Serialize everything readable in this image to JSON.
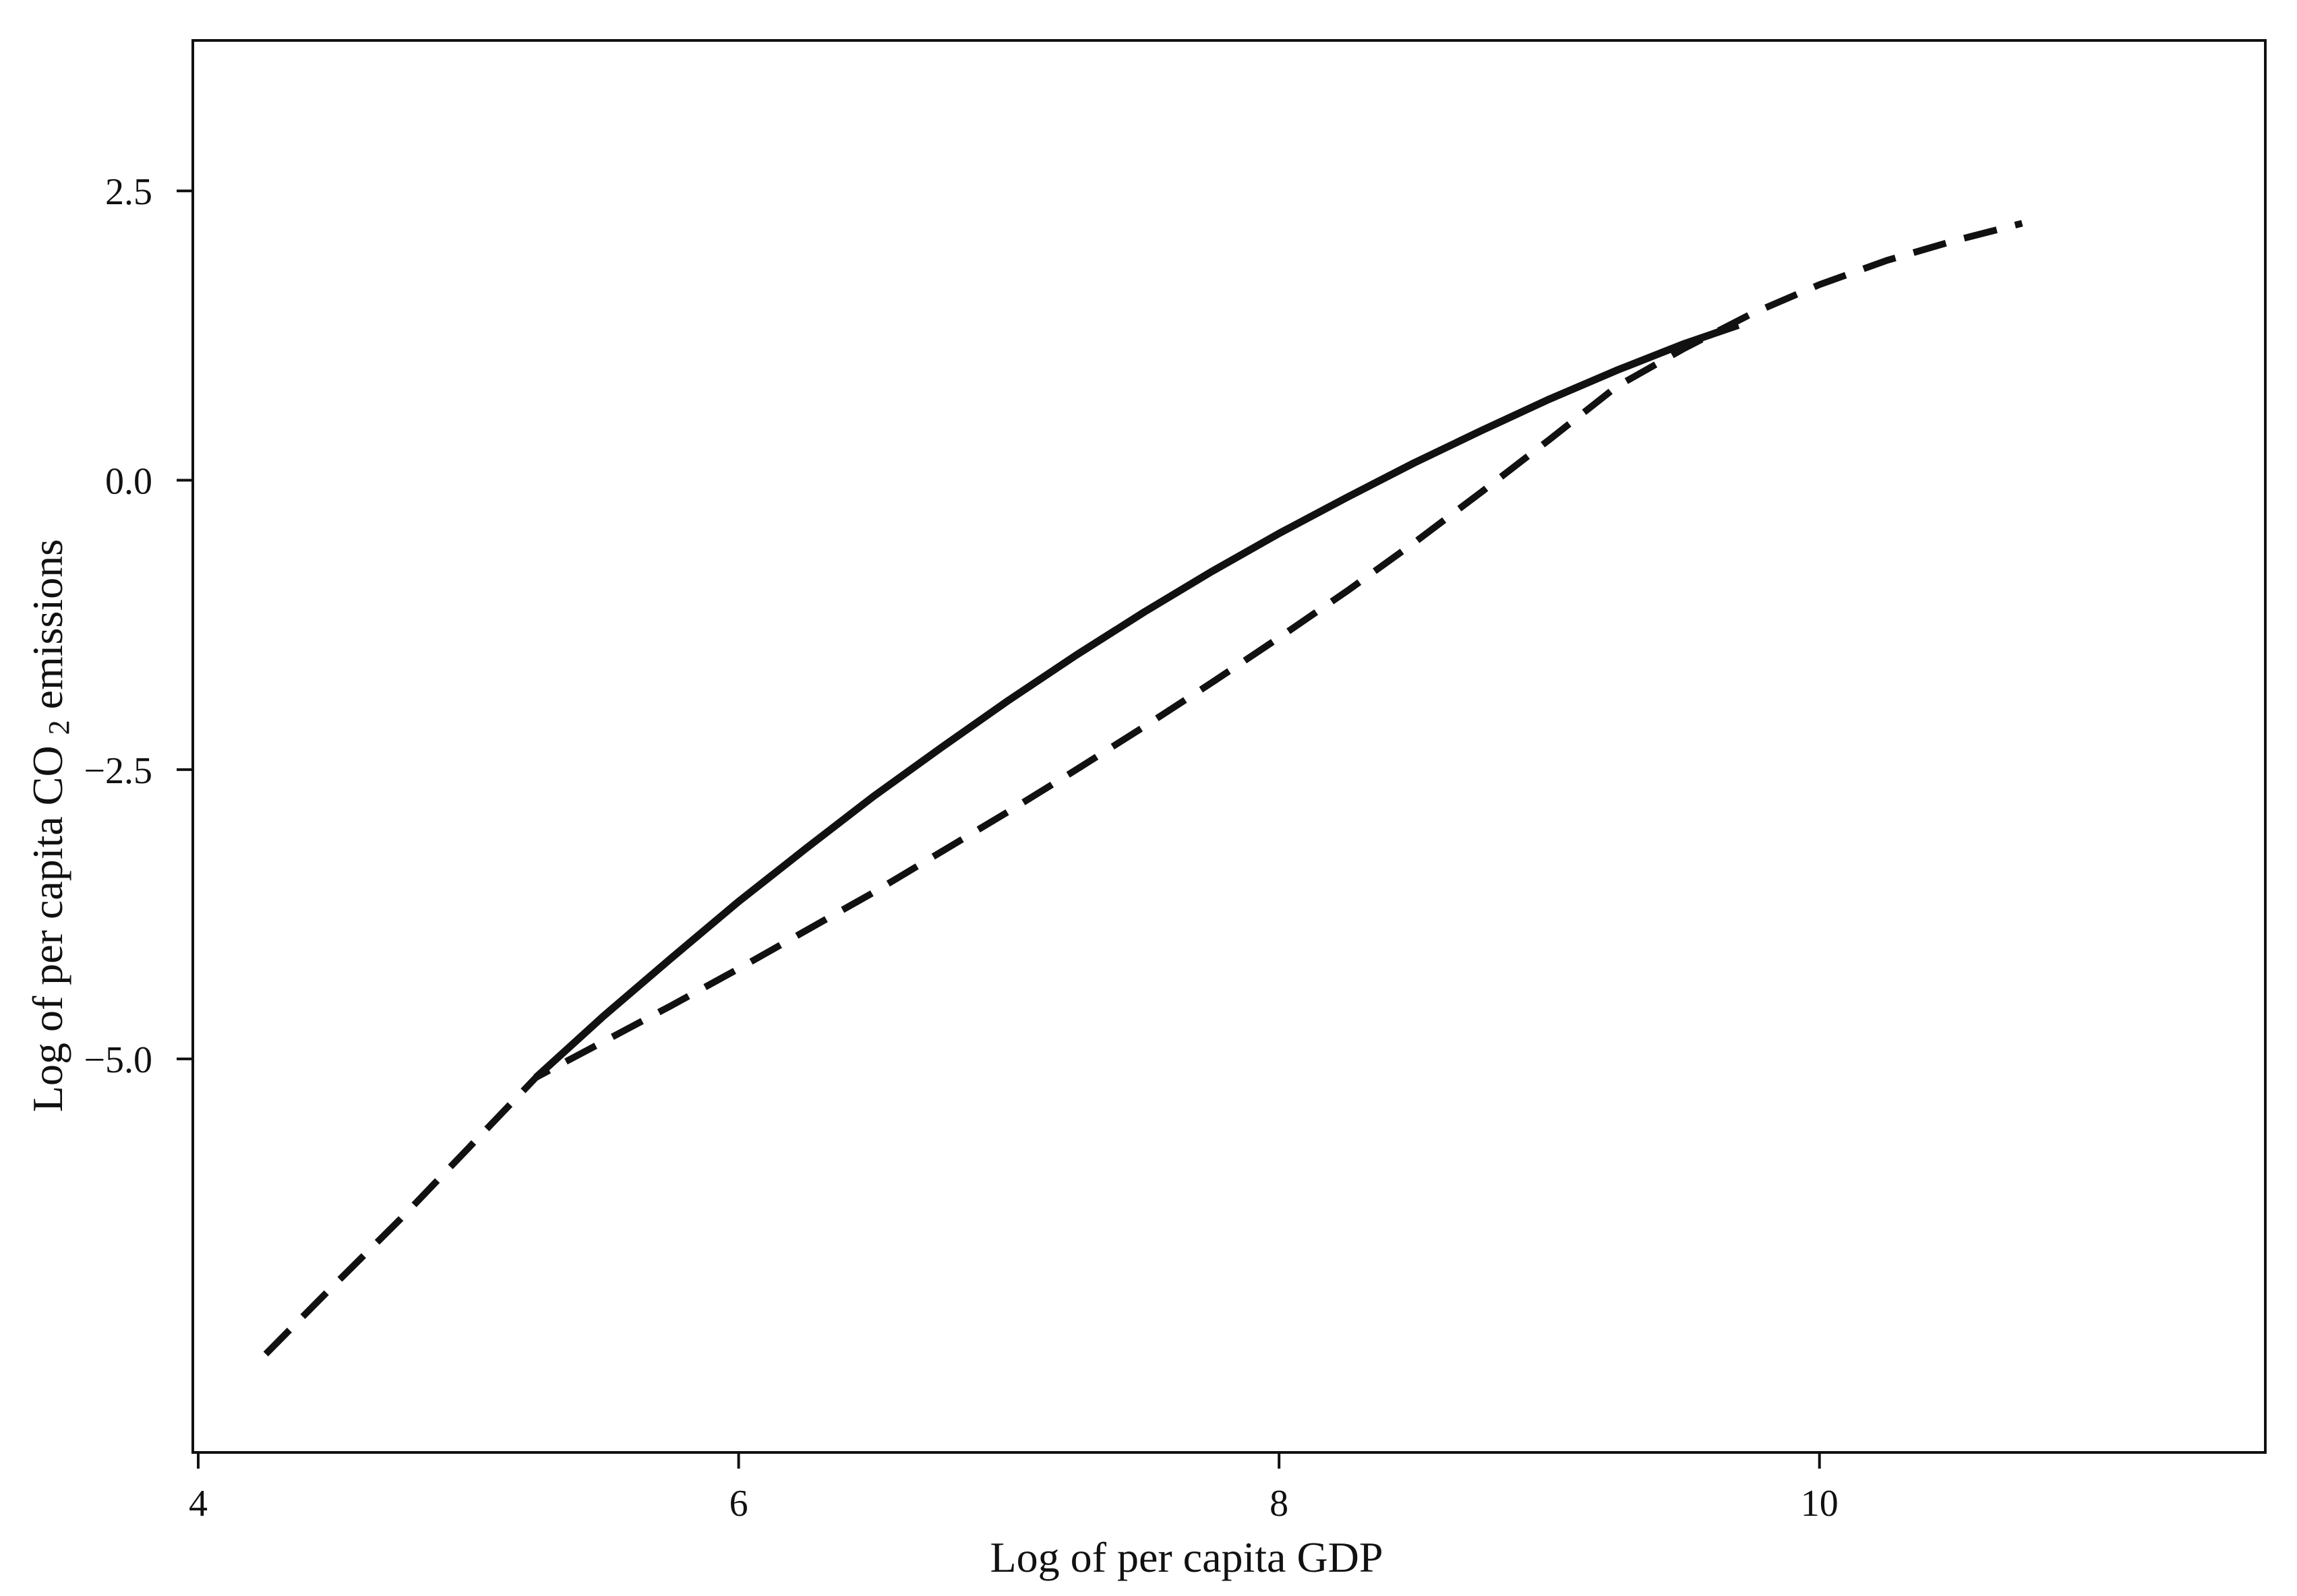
{
  "chart_data": {
    "type": "line",
    "title": "",
    "xlabel": "Log of per capita GDP",
    "ylabel_prefix": "Log of per capita CO",
    "ylabel_subscript": "2",
    "ylabel_suffix": " emissions",
    "xlim": [
      3.98,
      11.65
    ],
    "ylim": [
      -8.4,
      3.8
    ],
    "xticks": [
      {
        "value": 4,
        "label": "4"
      },
      {
        "value": 6,
        "label": "6"
      },
      {
        "value": 8,
        "label": "8"
      },
      {
        "value": 10,
        "label": "10"
      }
    ],
    "yticks": [
      {
        "value": 2.5,
        "label": "2.5"
      },
      {
        "value": 0.0,
        "label": "0.0"
      },
      {
        "value": -2.5,
        "label": "−2.5"
      },
      {
        "value": -5.0,
        "label": "−5.0"
      }
    ],
    "grid": false,
    "legend": "none",
    "series": [
      {
        "style": "solid",
        "color": "#111111",
        "x": [
          5.25,
          5.5,
          5.75,
          6.0,
          6.25,
          6.5,
          6.75,
          7.0,
          7.25,
          7.5,
          7.75,
          8.0,
          8.25,
          8.5,
          8.75,
          9.0,
          9.25,
          9.5,
          9.7
        ],
        "y": [
          -5.16,
          -4.63,
          -4.13,
          -3.64,
          -3.18,
          -2.73,
          -2.31,
          -1.9,
          -1.51,
          -1.14,
          -0.79,
          -0.46,
          -0.15,
          0.15,
          0.43,
          0.7,
          0.95,
          1.18,
          1.34
        ]
      },
      {
        "style": "dashed",
        "color": "#111111",
        "x": [
          4.25,
          4.5,
          4.75,
          5.0,
          5.25,
          5.5,
          5.75,
          6.0,
          6.25,
          6.5,
          6.75,
          7.0,
          7.25,
          7.5,
          7.75,
          8.0,
          8.25,
          8.5,
          8.75,
          9.0,
          9.25,
          9.5,
          9.75,
          10.0,
          10.25,
          10.5,
          10.75
        ],
        "y": [
          -7.55,
          -6.96,
          -6.38,
          -5.77,
          -5.16,
          -4.85,
          -4.54,
          -4.22,
          -3.89,
          -3.56,
          -3.21,
          -2.86,
          -2.5,
          -2.13,
          -1.75,
          -1.36,
          -0.96,
          -0.54,
          -0.1,
          0.35,
          0.81,
          1.14,
          1.44,
          1.69,
          1.9,
          2.07,
          2.22
        ]
      }
    ]
  }
}
